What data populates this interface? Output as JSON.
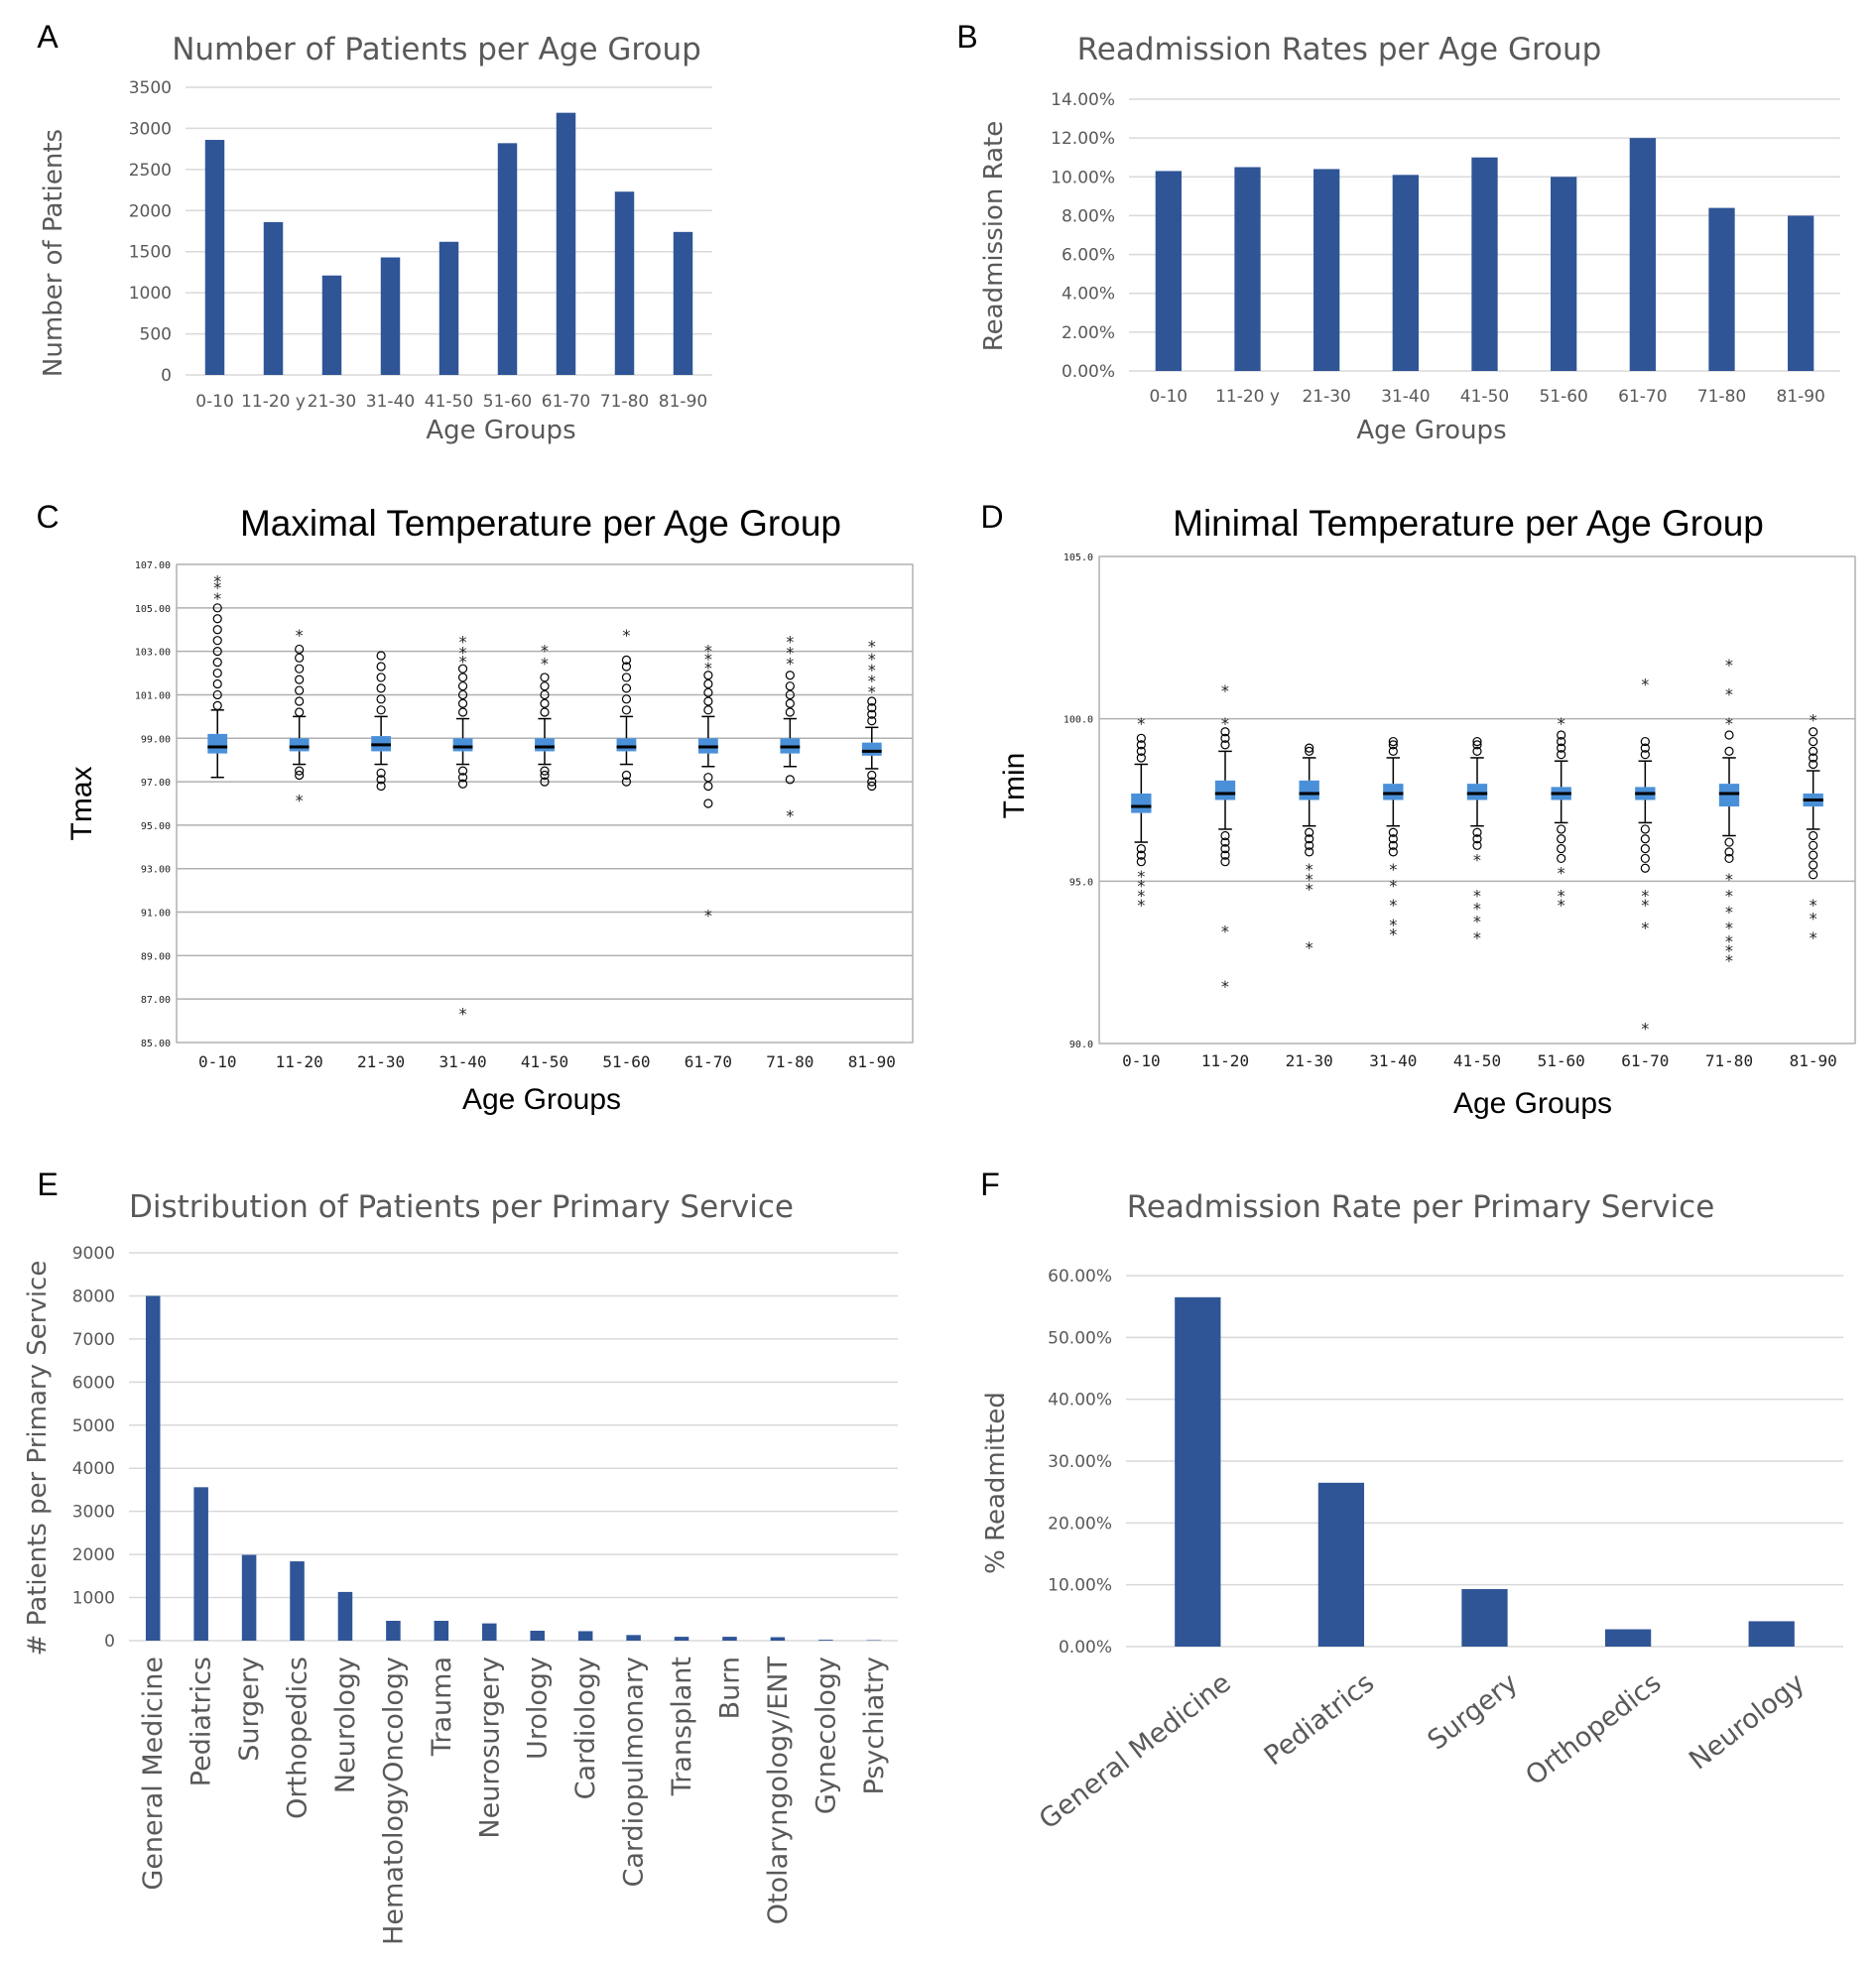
{
  "chart_data": [
    {
      "panel": "A",
      "type": "bar",
      "title": "Number of Patients per Age Group",
      "xlabel": "Age Groups",
      "ylabel": "Number of Patients",
      "categories": [
        "0-10",
        "11-20 y",
        "21-30",
        "31-40",
        "41-50",
        "51-60",
        "61-70",
        "71-80",
        "81-90"
      ],
      "values": [
        2860,
        1860,
        1210,
        1430,
        1620,
        2820,
        3190,
        2230,
        1740
      ],
      "ylim": [
        0,
        3500
      ],
      "yticks": [
        "0",
        "500",
        "1000",
        "1500",
        "2000",
        "2500",
        "3000",
        "3500"
      ],
      "color": "#2F5597",
      "grid": true
    },
    {
      "panel": "B",
      "type": "bar",
      "title": "Readmission Rates per Age Group",
      "xlabel": "Age Groups",
      "ylabel": "Readmission Rate",
      "categories": [
        "0-10",
        "11-20 y",
        "21-30",
        "31-40",
        "41-50",
        "51-60",
        "61-70",
        "71-80",
        "81-90"
      ],
      "values": [
        10.3,
        10.5,
        10.4,
        10.1,
        11.0,
        10.0,
        12.0,
        8.4,
        8.0
      ],
      "ylim": [
        0,
        14
      ],
      "yticks": [
        "0.00%",
        "2.00%",
        "4.00%",
        "6.00%",
        "8.00%",
        "10.00%",
        "12.00%",
        "14.00%"
      ],
      "color": "#2F5597",
      "grid": true
    },
    {
      "panel": "C",
      "type": "box",
      "title": "Maximal Temperature per Age Group",
      "xlabel": "Age Groups",
      "ylabel": "Tmax",
      "categories": [
        "0-10",
        "11-20",
        "21-30",
        "31-40",
        "41-50",
        "51-60",
        "61-70",
        "71-80",
        "81-90"
      ],
      "ylim": [
        85,
        107
      ],
      "yticks": [
        "85.00",
        "87.00",
        "89.00",
        "91.00",
        "93.00",
        "95.00",
        "97.00",
        "99.00",
        "101.00",
        "103.00",
        "105.00",
        "107.00"
      ],
      "boxes": [
        {
          "q1": 98.3,
          "median": 98.6,
          "q3": 99.2,
          "whisker_low": 97.2,
          "whisker_high": 100.3,
          "outliers_high": [
            100.5,
            101,
            101.5,
            102,
            102.5,
            103,
            103.5,
            104,
            104.5,
            105
          ],
          "outliers_low": [],
          "extremes": [
            105.5,
            106.0,
            106.3
          ]
        },
        {
          "q1": 98.4,
          "median": 98.6,
          "q3": 99.0,
          "whisker_low": 97.8,
          "whisker_high": 100.0,
          "outliers_high": [
            100.2,
            100.7,
            101.2,
            101.7,
            102.2,
            102.7,
            103.1
          ],
          "outliers_low": [
            97.5,
            97.3
          ],
          "extremes": [
            103.8,
            96.2
          ]
        },
        {
          "q1": 98.4,
          "median": 98.7,
          "q3": 99.1,
          "whisker_low": 97.8,
          "whisker_high": 100.0,
          "outliers_high": [
            100.3,
            100.8,
            101.3,
            101.8,
            102.3,
            102.8
          ],
          "outliers_low": [
            97.4,
            97.1,
            96.8
          ],
          "extremes": []
        },
        {
          "q1": 98.4,
          "median": 98.6,
          "q3": 99.0,
          "whisker_low": 97.8,
          "whisker_high": 99.9,
          "outliers_high": [
            100.2,
            100.6,
            101.0,
            101.4,
            101.8,
            102.2
          ],
          "outliers_low": [
            97.5,
            97.2,
            96.9
          ],
          "extremes": [
            102.6,
            103.0,
            103.5,
            86.4
          ]
        },
        {
          "q1": 98.4,
          "median": 98.6,
          "q3": 99.0,
          "whisker_low": 97.8,
          "whisker_high": 99.9,
          "outliers_high": [
            100.2,
            100.6,
            101.0,
            101.4,
            101.8
          ],
          "outliers_low": [
            97.5,
            97.3,
            97.0
          ],
          "extremes": [
            102.5,
            103.1
          ]
        },
        {
          "q1": 98.4,
          "median": 98.6,
          "q3": 99.0,
          "whisker_low": 97.8,
          "whisker_high": 100.0,
          "outliers_high": [
            100.3,
            100.8,
            101.3,
            101.8,
            102.3,
            102.6
          ],
          "outliers_low": [
            97.3,
            97.0
          ],
          "extremes": [
            103.8
          ]
        },
        {
          "q1": 98.3,
          "median": 98.6,
          "q3": 99.0,
          "whisker_low": 97.7,
          "whisker_high": 100.0,
          "outliers_high": [
            100.3,
            100.7,
            101.1,
            101.5,
            101.9
          ],
          "outliers_low": [
            97.2,
            96.8,
            96.0
          ],
          "extremes": [
            102.3,
            102.7,
            103.1,
            90.9
          ]
        },
        {
          "q1": 98.3,
          "median": 98.6,
          "q3": 99.0,
          "whisker_low": 97.7,
          "whisker_high": 99.9,
          "outliers_high": [
            100.2,
            100.6,
            101.0,
            101.4,
            101.9
          ],
          "outliers_low": [
            97.1
          ],
          "extremes": [
            102.5,
            103.0,
            103.5,
            95.5
          ]
        },
        {
          "q1": 98.2,
          "median": 98.4,
          "q3": 98.8,
          "whisker_low": 97.6,
          "whisker_high": 99.5,
          "outliers_high": [
            99.8,
            100.1,
            100.4,
            100.7
          ],
          "outliers_low": [
            97.3,
            97.0,
            96.8
          ],
          "extremes": [
            101.2,
            101.7,
            102.2,
            102.7,
            103.3
          ]
        }
      ],
      "box_color": "#4A90D9",
      "grid": true
    },
    {
      "panel": "D",
      "type": "box",
      "title": "Minimal Temperature per Age Group",
      "xlabel": "Age Groups",
      "ylabel": "Tmin",
      "categories": [
        "0-10",
        "11-20",
        "21-30",
        "31-40",
        "41-50",
        "51-60",
        "61-70",
        "71-80",
        "81-90"
      ],
      "ylim": [
        90,
        105
      ],
      "yticks": [
        "90.0",
        "95.0",
        "100.0",
        "105.0"
      ],
      "boxes": [
        {
          "q1": 97.1,
          "median": 97.3,
          "q3": 97.7,
          "whisker_low": 96.2,
          "whisker_high": 98.6,
          "outliers_high": [
            98.8,
            99.0,
            99.2,
            99.4
          ],
          "outliers_low": [
            96.0,
            95.8,
            95.6
          ],
          "extremes": [
            99.9,
            95.2,
            94.9,
            94.6,
            94.3
          ]
        },
        {
          "q1": 97.5,
          "median": 97.7,
          "q3": 98.1,
          "whisker_low": 96.6,
          "whisker_high": 99.0,
          "outliers_high": [
            99.2,
            99.4,
            99.6
          ],
          "outliers_low": [
            96.4,
            96.2,
            96.0,
            95.8,
            95.6
          ],
          "extremes": [
            100.9,
            99.9,
            93.5,
            91.8
          ]
        },
        {
          "q1": 97.5,
          "median": 97.7,
          "q3": 98.1,
          "whisker_low": 96.7,
          "whisker_high": 98.8,
          "outliers_high": [
            99.0,
            99.1
          ],
          "outliers_low": [
            96.5,
            96.3,
            96.1,
            95.9
          ],
          "extremes": [
            95.4,
            95.1,
            94.8,
            93.0
          ]
        },
        {
          "q1": 97.5,
          "median": 97.7,
          "q3": 98.0,
          "whisker_low": 96.7,
          "whisker_high": 98.8,
          "outliers_high": [
            99.0,
            99.2,
            99.3
          ],
          "outliers_low": [
            96.5,
            96.3,
            96.1,
            95.9
          ],
          "extremes": [
            95.4,
            94.9,
            94.3,
            93.7,
            93.4
          ]
        },
        {
          "q1": 97.5,
          "median": 97.7,
          "q3": 98.0,
          "whisker_low": 96.7,
          "whisker_high": 98.8,
          "outliers_high": [
            99.0,
            99.2,
            99.3
          ],
          "outliers_low": [
            96.5,
            96.3,
            96.1
          ],
          "extremes": [
            95.7,
            94.6,
            94.2,
            93.8,
            93.3
          ]
        },
        {
          "q1": 97.5,
          "median": 97.7,
          "q3": 97.9,
          "whisker_low": 96.8,
          "whisker_high": 98.7,
          "outliers_high": [
            98.9,
            99.1,
            99.3,
            99.5
          ],
          "outliers_low": [
            96.6,
            96.3,
            96.0,
            95.7
          ],
          "extremes": [
            99.9,
            95.3,
            94.6,
            94.3
          ]
        },
        {
          "q1": 97.5,
          "median": 97.7,
          "q3": 97.9,
          "whisker_low": 96.8,
          "whisker_high": 98.7,
          "outliers_high": [
            98.9,
            99.1,
            99.3
          ],
          "outliers_low": [
            96.6,
            96.3,
            96.0,
            95.7,
            95.4
          ],
          "extremes": [
            101.1,
            94.6,
            94.3,
            93.6,
            90.5
          ]
        },
        {
          "q1": 97.3,
          "median": 97.7,
          "q3": 98.0,
          "whisker_low": 96.4,
          "whisker_high": 98.8,
          "outliers_high": [
            99.0,
            99.5
          ],
          "outliers_low": [
            96.2,
            95.9,
            95.7
          ],
          "extremes": [
            101.7,
            100.8,
            99.9,
            95.1,
            94.6,
            94.1,
            93.6,
            93.2,
            92.9,
            92.6
          ]
        },
        {
          "q1": 97.3,
          "median": 97.5,
          "q3": 97.7,
          "whisker_low": 96.6,
          "whisker_high": 98.4,
          "outliers_high": [
            98.6,
            98.8,
            99.0,
            99.3,
            99.6
          ],
          "outliers_low": [
            96.4,
            96.1,
            95.8,
            95.5,
            95.2
          ],
          "extremes": [
            100.0,
            94.3,
            93.9,
            93.3
          ]
        }
      ],
      "box_color": "#4A90D9",
      "grid": true
    },
    {
      "panel": "E",
      "type": "bar",
      "title": "Distribution of Patients per Primary Service",
      "xlabel": "",
      "ylabel": "# Patients per Primary Service",
      "categories": [
        "General Medicine",
        "Pediatrics",
        "Surgery",
        "Orthopedics",
        "Neurology",
        "HematologyOncology",
        "Trauma",
        "Neurosurgery",
        "Urology",
        "Cardiology",
        "Cardiopulmonary",
        "Transplant",
        "Burn",
        "Otolaryngology/ENT",
        "Gynecology",
        "Psychiatry"
      ],
      "values": [
        8000,
        3560,
        1990,
        1840,
        1130,
        460,
        460,
        400,
        230,
        220,
        130,
        90,
        90,
        80,
        20,
        10
      ],
      "ylim": [
        0,
        9000
      ],
      "yticks": [
        "0",
        "1000",
        "2000",
        "3000",
        "4000",
        "5000",
        "6000",
        "7000",
        "8000",
        "9000"
      ],
      "color": "#2F5597",
      "grid": true
    },
    {
      "panel": "F",
      "type": "bar",
      "title": "Readmission Rate per Primary Service",
      "xlabel": "",
      "ylabel": "% Readmitted",
      "categories": [
        "General Medicine",
        "Pediatrics",
        "Surgery",
        "Orthopedics",
        "Neurology"
      ],
      "values": [
        56.5,
        26.5,
        9.3,
        2.8,
        4.1
      ],
      "ylim": [
        0,
        60
      ],
      "yticks": [
        "0.00%",
        "10.00%",
        "20.00%",
        "30.00%",
        "40.00%",
        "50.00%",
        "60.00%"
      ],
      "color": "#2F5597",
      "grid": true
    }
  ]
}
